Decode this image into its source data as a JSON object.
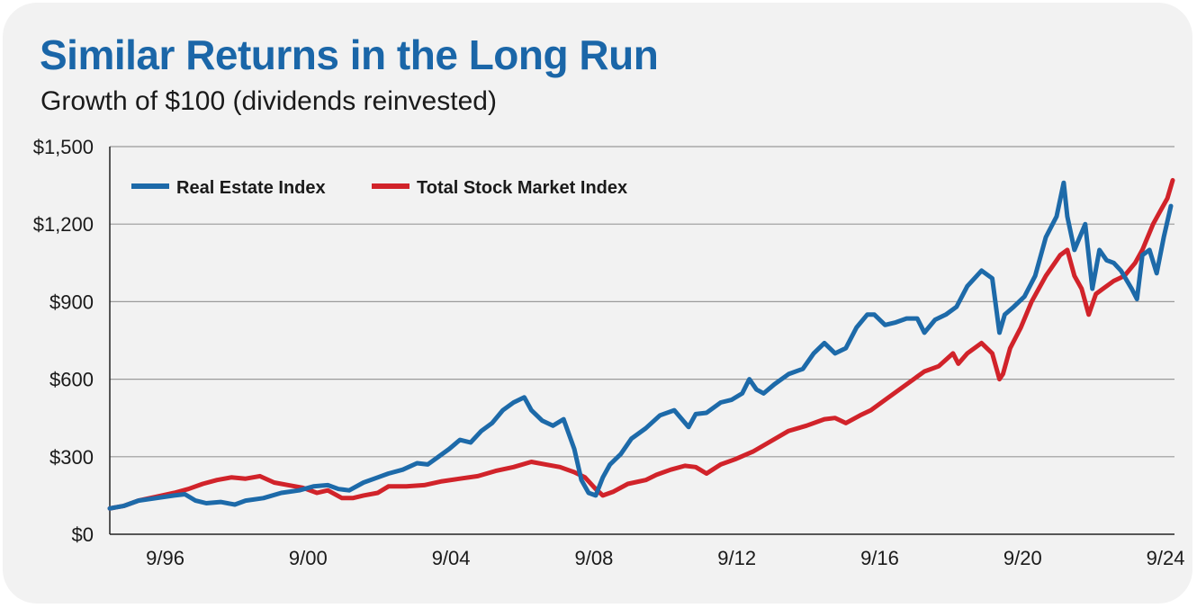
{
  "header": {
    "title": "Similar Returns in the Long Run",
    "subtitle": "Growth of $100 (dividends reinvested)"
  },
  "colors": {
    "real_estate": "#1d6aa9",
    "total_stock": "#d1232a",
    "grid": "#9a9a9a",
    "background": "#f2f2f2"
  },
  "chart_data": {
    "type": "line",
    "title": "Similar Returns in the Long Run",
    "subtitle": "Growth of $100 (dividends reinvested)",
    "xlabel": "",
    "ylabel": "",
    "xlim": [
      1995.2,
      2025.0
    ],
    "ylim": [
      0,
      1500
    ],
    "y_ticks": [
      0,
      300,
      600,
      900,
      1200,
      1500
    ],
    "y_tick_labels": [
      "$0",
      "$300",
      "$600",
      "$900",
      "$1,200",
      "$1,500"
    ],
    "x_ticks": [
      1996.75,
      2000.75,
      2004.75,
      2008.75,
      2012.75,
      2016.75,
      2020.75,
      2024.75
    ],
    "x_tick_labels": [
      "9/96",
      "9/00",
      "9/04",
      "9/08",
      "9/12",
      "9/16",
      "9/20",
      "9/24"
    ],
    "grid": "horizontal",
    "legend_position": "top-left",
    "series": [
      {
        "name": "Real Estate Index",
        "color": "#1d6aa9",
        "x": [
          1995.2,
          1995.6,
          1996.0,
          1996.5,
          1997.0,
          1997.3,
          1997.6,
          1997.9,
          1998.3,
          1998.7,
          1999.0,
          1999.5,
          2000.0,
          2000.5,
          2000.9,
          2001.3,
          2001.6,
          2001.9,
          2002.3,
          2002.7,
          2003.0,
          2003.4,
          2003.8,
          2004.1,
          2004.4,
          2004.7,
          2005.0,
          2005.3,
          2005.6,
          2005.9,
          2006.2,
          2006.5,
          2006.8,
          2007.0,
          2007.3,
          2007.6,
          2007.9,
          2008.2,
          2008.4,
          2008.6,
          2008.8,
          2009.0,
          2009.2,
          2009.5,
          2009.8,
          2010.2,
          2010.6,
          2011.0,
          2011.4,
          2011.6,
          2011.9,
          2012.3,
          2012.6,
          2012.9,
          2013.1,
          2013.3,
          2013.5,
          2013.8,
          2014.2,
          2014.6,
          2014.9,
          2015.2,
          2015.5,
          2015.8,
          2016.1,
          2016.4,
          2016.6,
          2016.9,
          2017.2,
          2017.5,
          2017.8,
          2018.0,
          2018.3,
          2018.6,
          2018.9,
          2019.2,
          2019.6,
          2019.9,
          2020.1,
          2020.25,
          2020.5,
          2020.8,
          2021.1,
          2021.4,
          2021.7,
          2021.9,
          2022.0,
          2022.2,
          2022.5,
          2022.7,
          2022.9,
          2023.1,
          2023.3,
          2023.5,
          2023.8,
          2023.95,
          2024.1,
          2024.3,
          2024.5,
          2024.7,
          2024.9
        ],
        "y": [
          100,
          110,
          130,
          140,
          150,
          155,
          130,
          120,
          125,
          115,
          130,
          140,
          160,
          170,
          185,
          190,
          175,
          170,
          200,
          220,
          235,
          250,
          275,
          270,
          300,
          330,
          365,
          355,
          400,
          430,
          480,
          510,
          530,
          480,
          440,
          420,
          445,
          330,
          210,
          160,
          150,
          220,
          270,
          310,
          370,
          410,
          460,
          480,
          415,
          465,
          470,
          510,
          520,
          545,
          600,
          560,
          545,
          580,
          620,
          640,
          700,
          740,
          700,
          720,
          800,
          850,
          850,
          810,
          820,
          835,
          835,
          780,
          830,
          850,
          880,
          960,
          1020,
          990,
          780,
          850,
          880,
          920,
          1000,
          1150,
          1230,
          1360,
          1230,
          1100,
          1200,
          950,
          1100,
          1060,
          1050,
          1020,
          950,
          910,
          1080,
          1100,
          1010,
          1150,
          1270
        ]
      },
      {
        "name": "Total Stock Market Index",
        "color": "#d1232a",
        "x": [
          1995.2,
          1995.6,
          1996.0,
          1996.5,
          1997.0,
          1997.4,
          1997.8,
          1998.2,
          1998.6,
          1999.0,
          1999.4,
          1999.8,
          2000.2,
          2000.6,
          2001.0,
          2001.3,
          2001.7,
          2002.0,
          2002.3,
          2002.7,
          2003.0,
          2003.5,
          2004.0,
          2004.5,
          2005.0,
          2005.5,
          2006.0,
          2006.5,
          2007.0,
          2007.4,
          2007.8,
          2008.2,
          2008.5,
          2008.8,
          2009.0,
          2009.3,
          2009.7,
          2010.2,
          2010.5,
          2010.9,
          2011.3,
          2011.6,
          2011.9,
          2012.3,
          2012.7,
          2013.2,
          2013.7,
          2014.2,
          2014.7,
          2015.2,
          2015.5,
          2015.8,
          2016.2,
          2016.5,
          2016.9,
          2017.3,
          2017.7,
          2018.0,
          2018.4,
          2018.8,
          2018.95,
          2019.2,
          2019.6,
          2019.9,
          2020.1,
          2020.2,
          2020.4,
          2020.7,
          2021.0,
          2021.4,
          2021.8,
          2022.0,
          2022.2,
          2022.4,
          2022.6,
          2022.8,
          2023.0,
          2023.3,
          2023.6,
          2023.9,
          2024.1,
          2024.4,
          2024.6,
          2024.8,
          2024.95
        ],
        "y": [
          100,
          110,
          130,
          145,
          160,
          175,
          195,
          210,
          220,
          215,
          225,
          200,
          190,
          180,
          160,
          170,
          140,
          140,
          150,
          160,
          185,
          185,
          190,
          205,
          215,
          225,
          245,
          260,
          280,
          270,
          260,
          240,
          220,
          175,
          150,
          165,
          195,
          210,
          230,
          250,
          265,
          260,
          235,
          270,
          290,
          320,
          360,
          400,
          420,
          445,
          450,
          430,
          460,
          480,
          520,
          560,
          600,
          630,
          650,
          700,
          660,
          700,
          740,
          700,
          600,
          620,
          720,
          800,
          900,
          1000,
          1080,
          1100,
          1000,
          950,
          850,
          930,
          950,
          980,
          1000,
          1050,
          1100,
          1200,
          1250,
          1300,
          1370
        ]
      }
    ]
  }
}
